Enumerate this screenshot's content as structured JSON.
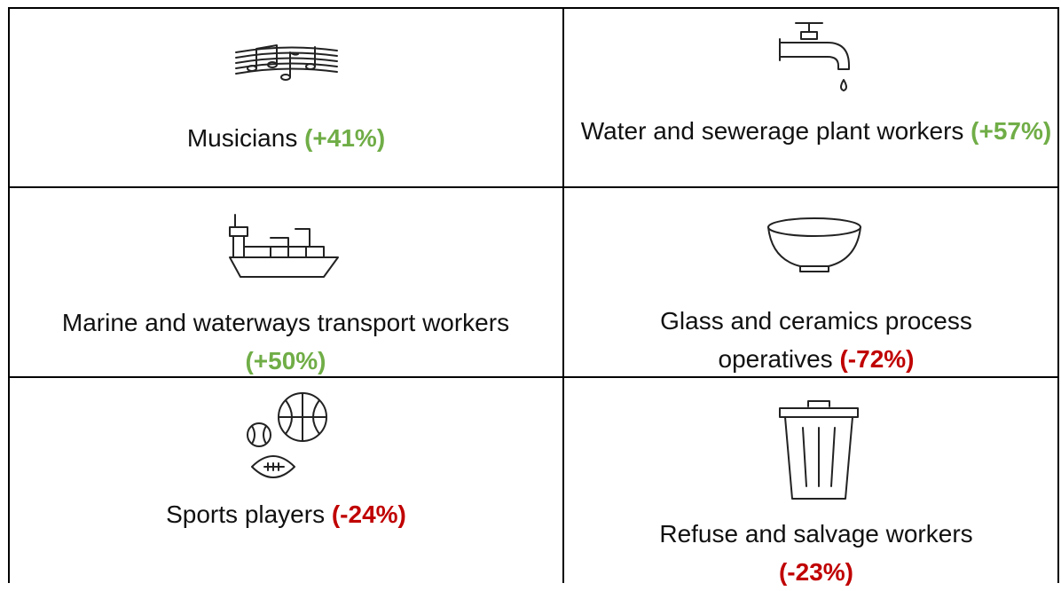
{
  "table": {
    "rows": [
      [
        {
          "label": "Musicians",
          "change": "(+41%)"
        },
        {
          "label": "Water and sewerage plant workers",
          "change": "(+57%)"
        }
      ],
      [
        {
          "label": "Marine and waterways transport workers",
          "change": "(+50%)"
        },
        {
          "label": "Glass and ceramics process operatives",
          "change": "(-72%)"
        }
      ],
      [
        {
          "label": "Sports players",
          "change": "(-24%)"
        },
        {
          "label": "Refuse and salvage workers",
          "change": "(-23%)"
        }
      ]
    ]
  }
}
